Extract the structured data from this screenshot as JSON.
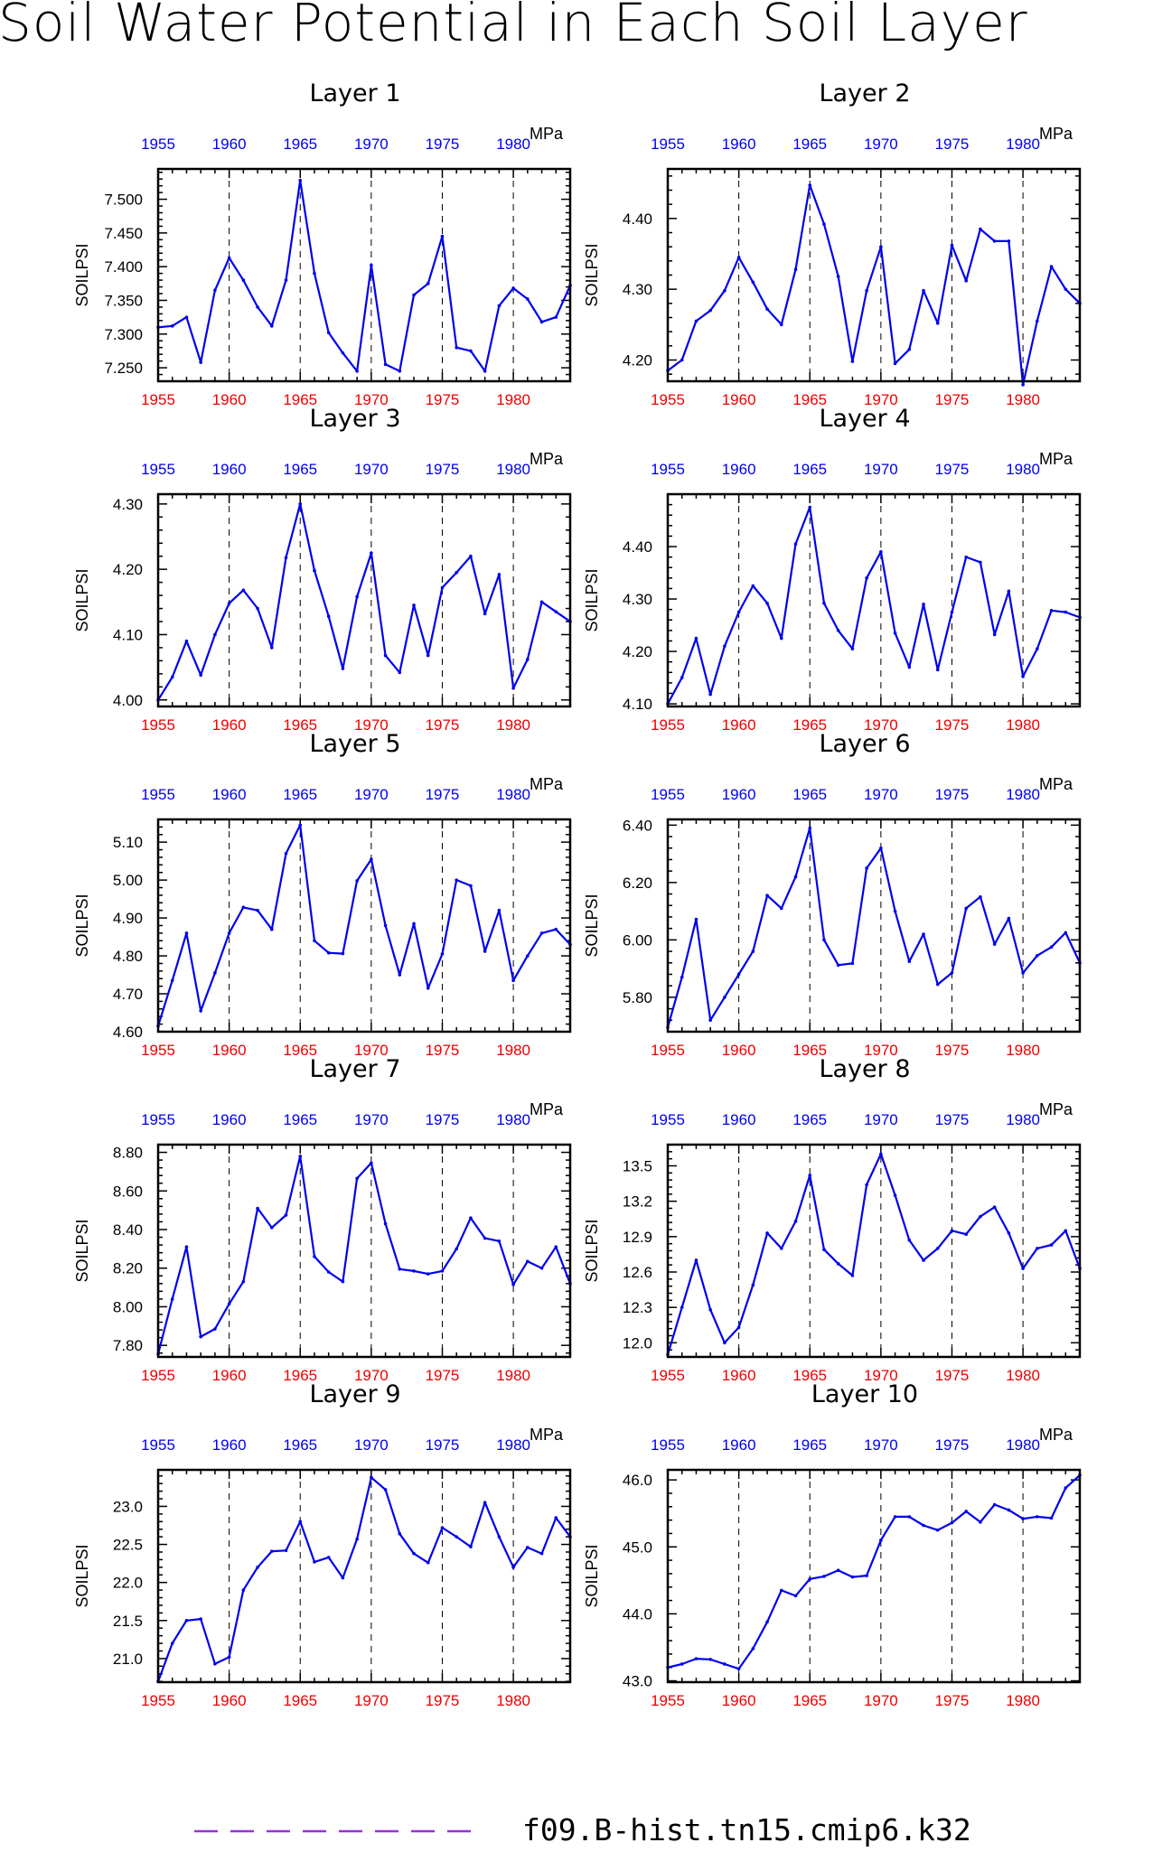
{
  "figure": {
    "title": "Soil Water Potential in Each Soil Layer",
    "legend": {
      "label": "f09.B-hist.tn15.cmip6.k32",
      "line_color": "#9b30d9"
    }
  },
  "colors": {
    "series": "#0000ee",
    "top_ticks": "#0000ee",
    "bottom_ticks": "#ee0000"
  },
  "chart_data": [
    {
      "type": "line",
      "title": "Layer 1",
      "ylabel": "SOILPSI",
      "unit_label": "MPa",
      "x_ticks": [
        "1955",
        "1960",
        "1965",
        "1970",
        "1975",
        "1980"
      ],
      "y_ticks": [
        "7.250",
        "7.300",
        "7.350",
        "7.400",
        "7.450",
        "7.500"
      ],
      "x_start": 1955,
      "xlim": [
        1955,
        1984
      ],
      "ylim": [
        7.23,
        7.545
      ],
      "grid": "dashed vertical at 1960, 1965, 1970, 1975, 1980",
      "series": [
        {
          "values": [
            7.31,
            7.312,
            7.325,
            7.258,
            7.365,
            7.413,
            7.38,
            7.34,
            7.312,
            7.38,
            7.528,
            7.39,
            7.302,
            7.272,
            7.245,
            7.402,
            7.255,
            7.245,
            7.358,
            7.375,
            7.445,
            7.28,
            7.275,
            7.245,
            7.342,
            7.368,
            7.352,
            7.318,
            7.325,
            7.372
          ]
        }
      ]
    },
    {
      "type": "line",
      "title": "Layer 2",
      "ylabel": "SOILPSI",
      "unit_label": "MPa",
      "x_ticks": [
        "1955",
        "1960",
        "1965",
        "1970",
        "1975",
        "1980"
      ],
      "y_ticks": [
        "4.20",
        "4.30",
        "4.40"
      ],
      "x_start": 1955,
      "xlim": [
        1955,
        1984
      ],
      "ylim": [
        4.17,
        4.47
      ],
      "grid": "dashed vertical at 1960, 1965, 1970, 1975, 1980",
      "series": [
        {
          "values": [
            4.185,
            4.2,
            4.255,
            4.27,
            4.298,
            4.345,
            4.31,
            4.272,
            4.25,
            4.328,
            4.447,
            4.392,
            4.318,
            4.198,
            4.298,
            4.36,
            4.195,
            4.215,
            4.298,
            4.252,
            4.362,
            4.312,
            4.385,
            4.368,
            4.368,
            4.165,
            4.255,
            4.332,
            4.3,
            4.28
          ]
        }
      ]
    },
    {
      "type": "line",
      "title": "Layer 3",
      "ylabel": "SOILPSI",
      "unit_label": "MPa",
      "x_ticks": [
        "1955",
        "1960",
        "1965",
        "1970",
        "1975",
        "1980"
      ],
      "y_ticks": [
        "4.00",
        "4.10",
        "4.20",
        "4.30"
      ],
      "x_start": 1955,
      "xlim": [
        1955,
        1984
      ],
      "ylim": [
        3.99,
        4.315
      ],
      "grid": "dashed vertical at 1960, 1965, 1970, 1975, 1980",
      "series": [
        {
          "values": [
            4.0,
            4.035,
            4.09,
            4.038,
            4.1,
            4.148,
            4.168,
            4.14,
            4.08,
            4.218,
            4.3,
            4.198,
            4.128,
            4.048,
            4.158,
            4.225,
            4.068,
            4.042,
            4.145,
            4.068,
            4.172,
            4.195,
            4.22,
            4.132,
            4.192,
            4.018,
            4.062,
            4.15,
            4.135,
            4.12
          ]
        }
      ]
    },
    {
      "type": "line",
      "title": "Layer 4",
      "ylabel": "SOILPSI",
      "unit_label": "MPa",
      "x_ticks": [
        "1955",
        "1960",
        "1965",
        "1970",
        "1975",
        "1980"
      ],
      "y_ticks": [
        "4.10",
        "4.20",
        "4.30",
        "4.40"
      ],
      "x_start": 1955,
      "xlim": [
        1955,
        1984
      ],
      "ylim": [
        4.095,
        4.5
      ],
      "grid": "dashed vertical at 1960, 1965, 1970, 1975, 1980",
      "series": [
        {
          "values": [
            4.1,
            4.15,
            4.225,
            4.118,
            4.21,
            4.275,
            4.325,
            4.292,
            4.225,
            4.405,
            4.475,
            4.292,
            4.24,
            4.205,
            4.34,
            4.39,
            4.235,
            4.17,
            4.29,
            4.165,
            4.275,
            4.38,
            4.37,
            4.232,
            4.315,
            4.152,
            4.205,
            4.278,
            4.275,
            4.265
          ]
        }
      ]
    },
    {
      "type": "line",
      "title": "Layer 5",
      "ylabel": "SOILPSI",
      "unit_label": "MPa",
      "x_ticks": [
        "1955",
        "1960",
        "1965",
        "1970",
        "1975",
        "1980"
      ],
      "y_ticks": [
        "4.60",
        "4.70",
        "4.80",
        "4.90",
        "5.00",
        "5.10"
      ],
      "x_start": 1955,
      "xlim": [
        1955,
        1984
      ],
      "ylim": [
        4.6,
        5.16
      ],
      "grid": "dashed vertical at 1960, 1965, 1970, 1975, 1980",
      "series": [
        {
          "values": [
            4.615,
            4.735,
            4.86,
            4.655,
            4.755,
            4.86,
            4.928,
            4.92,
            4.87,
            5.07,
            5.145,
            4.84,
            4.808,
            4.806,
            4.998,
            5.055,
            4.88,
            4.75,
            4.885,
            4.715,
            4.805,
            5.0,
            4.985,
            4.812,
            4.92,
            4.735,
            4.8,
            4.86,
            4.87,
            4.83
          ]
        }
      ]
    },
    {
      "type": "line",
      "title": "Layer 6",
      "ylabel": "SOILPSI",
      "unit_label": "MPa",
      "x_ticks": [
        "1955",
        "1960",
        "1965",
        "1970",
        "1975",
        "1980"
      ],
      "y_ticks": [
        "5.80",
        "6.00",
        "6.20",
        "6.40"
      ],
      "x_start": 1955,
      "xlim": [
        1955,
        1984
      ],
      "ylim": [
        5.68,
        6.42
      ],
      "grid": "dashed vertical at 1960, 1965, 1970, 1975, 1980",
      "series": [
        {
          "values": [
            5.695,
            5.87,
            6.072,
            5.72,
            5.8,
            5.88,
            5.96,
            6.155,
            6.11,
            6.22,
            6.39,
            6.0,
            5.912,
            5.918,
            6.25,
            6.32,
            6.1,
            5.925,
            6.02,
            5.845,
            5.885,
            6.11,
            6.15,
            5.985,
            6.075,
            5.885,
            5.945,
            5.975,
            6.025,
            5.92
          ]
        }
      ]
    },
    {
      "type": "line",
      "title": "Layer 7",
      "ylabel": "SOILPSI",
      "unit_label": "MPa",
      "x_ticks": [
        "1955",
        "1960",
        "1965",
        "1970",
        "1975",
        "1980"
      ],
      "y_ticks": [
        "7.80",
        "8.00",
        "8.20",
        "8.40",
        "8.60",
        "8.80"
      ],
      "x_start": 1955,
      "xlim": [
        1955,
        1984
      ],
      "ylim": [
        7.74,
        8.84
      ],
      "grid": "dashed vertical at 1960, 1965, 1970, 1975, 1980",
      "series": [
        {
          "values": [
            7.755,
            8.04,
            8.31,
            7.845,
            7.885,
            8.015,
            8.13,
            8.51,
            8.41,
            8.475,
            8.78,
            8.26,
            8.18,
            8.13,
            8.665,
            8.745,
            8.43,
            8.195,
            8.185,
            8.17,
            8.185,
            8.3,
            8.46,
            8.355,
            8.34,
            8.115,
            8.235,
            8.2,
            8.31,
            8.12
          ]
        }
      ]
    },
    {
      "type": "line",
      "title": "Layer 8",
      "ylabel": "SOILPSI",
      "unit_label": "MPa",
      "x_ticks": [
        "1955",
        "1960",
        "1965",
        "1970",
        "1975",
        "1980"
      ],
      "y_ticks": [
        "12.0",
        "12.3",
        "12.6",
        "12.9",
        "13.2",
        "13.5"
      ],
      "x_start": 1955,
      "xlim": [
        1955,
        1984
      ],
      "ylim": [
        11.88,
        13.68
      ],
      "grid": "dashed vertical at 1960, 1965, 1970, 1975, 1980",
      "series": [
        {
          "values": [
            11.9,
            12.3,
            12.7,
            12.28,
            12.0,
            12.13,
            12.49,
            12.93,
            12.8,
            13.03,
            13.42,
            12.79,
            12.67,
            12.57,
            13.34,
            13.6,
            13.25,
            12.87,
            12.7,
            12.8,
            12.95,
            12.92,
            13.07,
            13.15,
            12.93,
            12.63,
            12.8,
            12.83,
            12.95,
            12.63
          ]
        }
      ]
    },
    {
      "type": "line",
      "title": "Layer 9",
      "ylabel": "SOILPSI",
      "unit_label": "MPa",
      "x_ticks": [
        "1955",
        "1960",
        "1965",
        "1970",
        "1975",
        "1980"
      ],
      "y_ticks": [
        "21.0",
        "21.5",
        "22.0",
        "22.5",
        "23.0"
      ],
      "x_start": 1955,
      "xlim": [
        1955,
        1984
      ],
      "ylim": [
        20.69,
        23.48
      ],
      "grid": "dashed vertical at 1960, 1965, 1970, 1975, 1980",
      "series": [
        {
          "values": [
            20.7,
            21.2,
            21.5,
            21.52,
            20.93,
            21.02,
            21.9,
            22.2,
            22.41,
            22.42,
            22.8,
            22.27,
            22.33,
            22.06,
            22.57,
            23.38,
            23.22,
            22.64,
            22.38,
            22.26,
            22.72,
            22.6,
            22.47,
            23.05,
            22.6,
            22.2,
            22.46,
            22.38,
            22.85,
            22.6
          ]
        }
      ]
    },
    {
      "type": "line",
      "title": "Layer 10",
      "ylabel": "SOILPSI",
      "unit_label": "MPa",
      "x_ticks": [
        "1955",
        "1960",
        "1965",
        "1970",
        "1975",
        "1980"
      ],
      "y_ticks": [
        "43.0",
        "44.0",
        "45.0",
        "46.0"
      ],
      "x_start": 1955,
      "xlim": [
        1955,
        1984
      ],
      "ylim": [
        42.98,
        46.15
      ],
      "grid": "dashed vertical at 1960, 1965, 1970, 1975, 1980",
      "series": [
        {
          "values": [
            43.2,
            43.25,
            43.33,
            43.32,
            43.25,
            43.18,
            43.48,
            43.88,
            44.35,
            44.27,
            44.52,
            44.56,
            44.65,
            44.55,
            44.57,
            45.1,
            45.45,
            45.45,
            45.32,
            45.25,
            45.36,
            45.53,
            45.37,
            45.63,
            45.55,
            45.42,
            45.45,
            45.43,
            45.88,
            46.07
          ]
        }
      ]
    }
  ]
}
